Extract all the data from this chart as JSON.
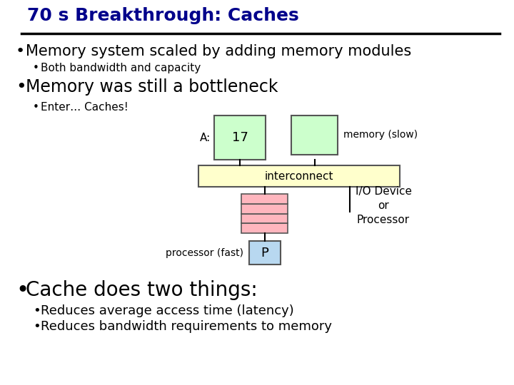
{
  "title": "70 s Breakthrough: Caches",
  "title_color": "#00008B",
  "title_fontsize": 18,
  "bg_color": "#FFFFFF",
  "bullet1": "Memory system scaled by adding memory modules",
  "bullet1_sub": "Both bandwidth and capacity",
  "bullet2": "Memory was still a bottleneck",
  "bullet2_sub": "Enter… Caches!",
  "label_A": "A:",
  "label_17": "17",
  "label_memory_slow": "memory (slow)",
  "label_interconnect": "interconnect",
  "label_processor_fast": "processor (fast)",
  "label_P": "P",
  "label_io": "I/O Device\nor\nProcessor",
  "bullet3": "Cache does two things:",
  "bullet3_sub1": "Reduces average access time (latency)",
  "bullet3_sub2": "Reduces bandwidth requirements to memory",
  "mem_box_color": "#CCFFCC",
  "mem_box_edge": "#555555",
  "interconnect_color": "#FFFFCC",
  "interconnect_edge": "#555555",
  "cache_color": "#FFB6BE",
  "cache_edge": "#555555",
  "proc_color": "#B8D8F0",
  "proc_edge": "#555555",
  "text_color": "#000000",
  "title_underline_color": "#000000",
  "bullet1_fontsize": 15,
  "bullet2_fontsize": 17,
  "sub_bullet_fontsize": 11,
  "bullet3_fontsize": 20,
  "bullet3_sub_fontsize": 13,
  "diagram_fontsize": 10,
  "diagram_label_17_fontsize": 13,
  "diagram_P_fontsize": 13
}
